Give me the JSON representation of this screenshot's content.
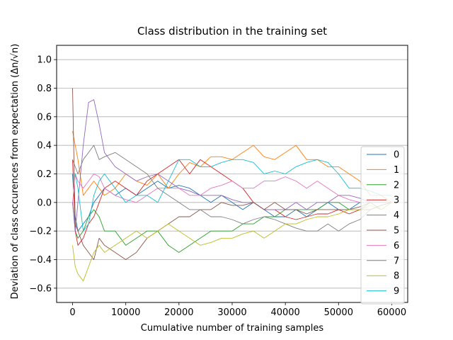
{
  "chart_data": {
    "type": "line",
    "title": "Class distribution in the training set",
    "xlabel": "Cumulative number of training samples",
    "ylabel": "Deviation of class occurences from expectation (Δn/√n)",
    "xlim": [
      -3000,
      63000
    ],
    "ylim": [
      -0.7,
      1.1
    ],
    "xticks": [
      0,
      10000,
      20000,
      30000,
      40000,
      50000,
      60000
    ],
    "xtick_labels": [
      "0",
      "10000",
      "20000",
      "30000",
      "40000",
      "50000",
      "60000"
    ],
    "yticks": [
      -0.6,
      -0.4,
      -0.2,
      0.0,
      0.2,
      0.4,
      0.6,
      0.8,
      1.0
    ],
    "ytick_labels": [
      "−0.6",
      "−0.4",
      "−0.2",
      "0.0",
      "0.2",
      "0.4",
      "0.6",
      "0.8",
      "1.0"
    ],
    "grid": "horizontal",
    "legend_position": "right",
    "x": [
      0,
      500,
      1000,
      2000,
      3000,
      4000,
      5000,
      6000,
      8000,
      10000,
      12000,
      14000,
      16000,
      18000,
      20000,
      22000,
      24000,
      26000,
      28000,
      30000,
      32000,
      34000,
      36000,
      38000,
      40000,
      42000,
      44000,
      46000,
      48000,
      50000,
      52000,
      54000,
      56000,
      58000,
      60000
    ],
    "series": [
      {
        "name": "0",
        "color": "#1f77b4",
        "values": [
          0.2,
          -0.1,
          -0.2,
          -0.15,
          -0.1,
          0.0,
          0.05,
          0.1,
          0.05,
          0.1,
          0.05,
          0.1,
          0.15,
          0.1,
          0.12,
          0.1,
          0.05,
          0.0,
          0.05,
          0.0,
          -0.05,
          0.0,
          -0.05,
          -0.1,
          -0.1,
          -0.05,
          -0.1,
          -0.05,
          0.0,
          -0.05,
          -0.05,
          0.0,
          0.0,
          0.0,
          0.0
        ]
      },
      {
        "name": "1",
        "color": "#ff7f0e",
        "values": [
          0.5,
          0.4,
          0.3,
          0.05,
          0.1,
          0.15,
          0.1,
          0.05,
          0.1,
          0.2,
          0.15,
          0.12,
          0.2,
          0.1,
          0.2,
          0.28,
          0.25,
          0.32,
          0.32,
          0.3,
          0.35,
          0.4,
          0.32,
          0.3,
          0.35,
          0.4,
          0.3,
          0.3,
          0.25,
          0.25,
          0.2,
          0.15,
          0.05,
          0.05,
          0.0
        ]
      },
      {
        "name": "2",
        "color": "#2ca02c",
        "values": [
          0.0,
          -0.2,
          -0.25,
          -0.2,
          -0.1,
          -0.05,
          -0.1,
          -0.2,
          -0.2,
          -0.3,
          -0.25,
          -0.2,
          -0.2,
          -0.3,
          -0.35,
          -0.3,
          -0.25,
          -0.2,
          -0.2,
          -0.2,
          -0.15,
          -0.15,
          -0.1,
          -0.1,
          -0.05,
          -0.05,
          -0.05,
          -0.05,
          0.0,
          0.0,
          -0.05,
          -0.05,
          0.0,
          -0.05,
          0.0
        ]
      },
      {
        "name": "3",
        "color": "#d62728",
        "values": [
          0.3,
          -0.2,
          -0.3,
          -0.25,
          -0.15,
          -0.1,
          0.0,
          0.1,
          0.15,
          0.1,
          0.05,
          0.15,
          0.2,
          0.25,
          0.3,
          0.2,
          0.3,
          0.25,
          0.2,
          0.15,
          0.1,
          0.0,
          -0.05,
          -0.05,
          -0.1,
          -0.12,
          -0.1,
          -0.08,
          -0.08,
          -0.05,
          -0.08,
          -0.05,
          -0.05,
          -0.02,
          0.0
        ]
      },
      {
        "name": "4",
        "color": "#9467bd",
        "values": [
          0.0,
          -0.2,
          0.0,
          0.4,
          0.7,
          0.72,
          0.55,
          0.35,
          0.25,
          0.2,
          0.15,
          0.18,
          0.2,
          0.15,
          0.1,
          0.08,
          0.05,
          0.05,
          0.05,
          0.02,
          0.0,
          0.0,
          -0.05,
          -0.05,
          -0.05,
          0.0,
          -0.05,
          0.0,
          0.0,
          0.05,
          0.05,
          0.03,
          0.0,
          0.0,
          0.0
        ]
      },
      {
        "name": "5",
        "color": "#8c564b",
        "values": [
          0.8,
          -0.15,
          -0.2,
          -0.3,
          -0.35,
          -0.4,
          -0.25,
          -0.3,
          -0.35,
          -0.4,
          -0.35,
          -0.25,
          -0.2,
          -0.15,
          -0.1,
          -0.1,
          -0.05,
          -0.05,
          0.0,
          -0.02,
          -0.02,
          0.0,
          -0.05,
          0.0,
          -0.05,
          -0.05,
          -0.08,
          -0.05,
          -0.05,
          -0.05,
          -0.05,
          -0.03,
          0.0,
          0.0,
          0.0
        ]
      },
      {
        "name": "6",
        "color": "#e377c2",
        "values": [
          0.0,
          0.2,
          0.15,
          0.1,
          0.15,
          0.2,
          0.18,
          0.1,
          0.05,
          0.02,
          0.0,
          0.05,
          0.1,
          0.1,
          0.1,
          0.05,
          0.05,
          0.1,
          0.12,
          0.15,
          0.1,
          0.1,
          0.15,
          0.15,
          0.18,
          0.15,
          0.1,
          0.15,
          0.1,
          0.05,
          0.02,
          0.0,
          0.0,
          0.0,
          0.0
        ]
      },
      {
        "name": "7",
        "color": "#7f7f7f",
        "values": [
          0.3,
          0.25,
          0.2,
          0.3,
          0.35,
          0.4,
          0.3,
          0.32,
          0.35,
          0.3,
          0.25,
          0.2,
          0.1,
          0.05,
          0.0,
          -0.05,
          -0.05,
          -0.1,
          -0.1,
          -0.12,
          -0.15,
          -0.12,
          -0.1,
          -0.12,
          -0.15,
          -0.18,
          -0.2,
          -0.2,
          -0.15,
          -0.2,
          -0.15,
          -0.12,
          -0.05,
          -0.02,
          0.0
        ]
      },
      {
        "name": "8",
        "color": "#bcbd22",
        "values": [
          -0.3,
          -0.45,
          -0.5,
          -0.55,
          -0.45,
          -0.35,
          -0.3,
          -0.35,
          -0.3,
          -0.25,
          -0.2,
          -0.25,
          -0.2,
          -0.15,
          -0.2,
          -0.25,
          -0.3,
          -0.28,
          -0.25,
          -0.25,
          -0.22,
          -0.2,
          -0.25,
          -0.2,
          -0.15,
          -0.15,
          -0.12,
          -0.1,
          -0.1,
          -0.08,
          -0.05,
          -0.05,
          -0.02,
          -0.05,
          0.0
        ]
      },
      {
        "name": "9",
        "color": "#17becf",
        "values": [
          0.2,
          0.2,
          0.1,
          -0.2,
          -0.15,
          0.05,
          0.15,
          0.2,
          0.1,
          0.0,
          0.05,
          0.05,
          0.0,
          0.15,
          0.3,
          0.3,
          0.25,
          0.25,
          0.28,
          0.3,
          0.3,
          0.28,
          0.2,
          0.22,
          0.2,
          0.25,
          0.28,
          0.3,
          0.28,
          0.2,
          0.1,
          0.1,
          0.08,
          0.05,
          0.05
        ]
      }
    ]
  }
}
